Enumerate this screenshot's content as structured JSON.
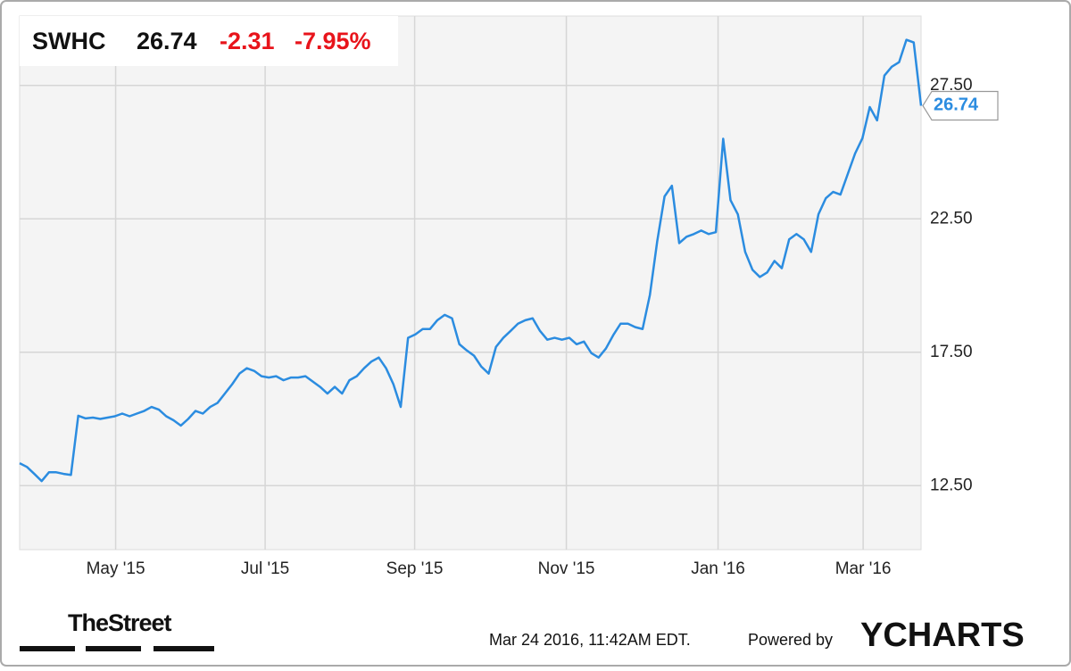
{
  "chart_data": {
    "type": "line",
    "header": {
      "ticker": "SWHC",
      "price": "26.74",
      "change": "-2.31",
      "change_pct": "-7.95%"
    },
    "footer": {
      "timestamp": "Mar 24 2016, 11:42AM EDT.",
      "powered_by": "Powered by",
      "brand": "YCHARTS",
      "source": "TheStreet"
    },
    "series": [
      {
        "name": "SWHC",
        "color": "#2b8ce0",
        "values": [
          13.34,
          13.2,
          12.94,
          12.67,
          13.0,
          13.0,
          12.94,
          12.9,
          15.12,
          15.02,
          15.05,
          15.0,
          15.05,
          15.1,
          15.2,
          15.1,
          15.2,
          15.3,
          15.45,
          15.35,
          15.1,
          14.95,
          14.75,
          15.0,
          15.3,
          15.2,
          15.45,
          15.6,
          15.95,
          16.3,
          16.7,
          16.9,
          16.8,
          16.6,
          16.55,
          16.6,
          16.45,
          16.55,
          16.55,
          16.6,
          16.4,
          16.2,
          15.95,
          16.2,
          15.95,
          16.45,
          16.6,
          16.9,
          17.15,
          17.3,
          16.9,
          16.3,
          15.45,
          18.04,
          18.17,
          18.37,
          18.37,
          18.7,
          18.9,
          18.77,
          17.8,
          17.57,
          17.37,
          16.96,
          16.7,
          17.7,
          18.04,
          18.3,
          18.57,
          18.7,
          18.77,
          18.3,
          17.97,
          18.04,
          17.97,
          18.04,
          17.8,
          17.9,
          17.47,
          17.3,
          17.64,
          18.14,
          18.57,
          18.57,
          18.44,
          18.37,
          19.65,
          21.66,
          23.34,
          23.74,
          21.59,
          21.83,
          21.93,
          22.06,
          21.93,
          22.0,
          25.5,
          23.2,
          22.67,
          21.26,
          20.59,
          20.32,
          20.49,
          20.92,
          20.65,
          21.73,
          21.93,
          21.73,
          21.26,
          22.67,
          23.27,
          23.51,
          23.41,
          24.18,
          24.95,
          25.52,
          26.69,
          26.19,
          27.87,
          28.2,
          28.37,
          29.21,
          29.11,
          26.74
        ]
      }
    ],
    "xlim": [
      0,
      123
    ],
    "xticks": [
      {
        "value": 13.1,
        "label": "May '15"
      },
      {
        "value": 33.5,
        "label": "Jul '15"
      },
      {
        "value": 53.9,
        "label": "Sep '15"
      },
      {
        "value": 74.6,
        "label": "Nov '15"
      },
      {
        "value": 95.3,
        "label": "Jan '16"
      },
      {
        "value": 115.1,
        "label": "Mar '16"
      }
    ],
    "ylim": [
      10.1,
      30.1
    ],
    "yticks": [
      {
        "value": 12.5,
        "label": "12.50"
      },
      {
        "value": 17.5,
        "label": "17.50"
      },
      {
        "value": 22.5,
        "label": "22.50"
      },
      {
        "value": 27.5,
        "label": "27.50"
      }
    ],
    "grid": true
  }
}
